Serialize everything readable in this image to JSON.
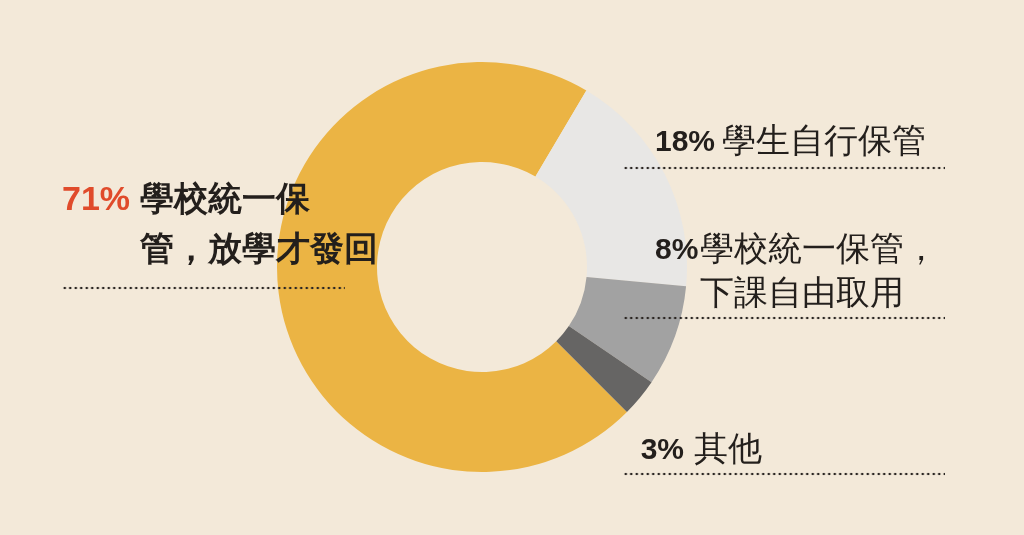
{
  "chart_data": {
    "type": "donut",
    "categories": [
      "學校統一保管，放學才發回",
      "學生自行保管",
      "學校統一保管，下課自由取用",
      "其他"
    ],
    "values": [
      71,
      18,
      8,
      3
    ],
    "colors": [
      "#ebb444",
      "#e8e7e5",
      "#a2a2a2",
      "#666564"
    ],
    "value_labels": [
      "71%",
      "18%",
      "8%",
      "3%"
    ]
  }
}
